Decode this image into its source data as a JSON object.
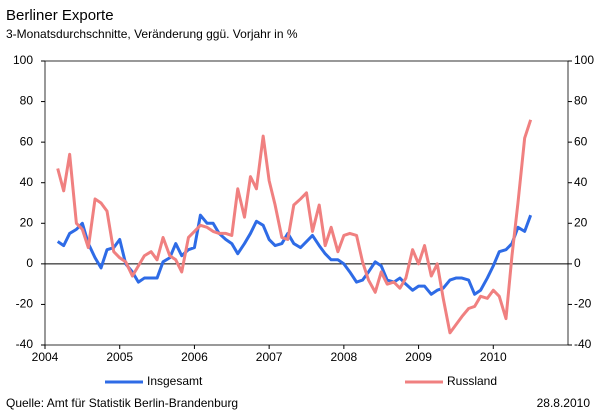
{
  "chart_data": {
    "type": "line",
    "title": "Berliner Exporte",
    "subtitle": "3-Monatsdurchschnitte, Veränderung ggü. Vorjahr in %",
    "source": "Quelle: Amt für Statistik Berlin-Brandenburg",
    "date": "28.8.2010",
    "x": [
      2004.17,
      2004.25,
      2004.33,
      2004.42,
      2004.5,
      2004.58,
      2004.67,
      2004.75,
      2004.83,
      2004.92,
      2005.0,
      2005.08,
      2005.17,
      2005.25,
      2005.33,
      2005.42,
      2005.5,
      2005.58,
      2005.67,
      2005.75,
      2005.83,
      2005.92,
      2006.0,
      2006.08,
      2006.17,
      2006.25,
      2006.33,
      2006.42,
      2006.5,
      2006.58,
      2006.67,
      2006.75,
      2006.83,
      2006.92,
      2007.0,
      2007.08,
      2007.17,
      2007.25,
      2007.33,
      2007.42,
      2007.5,
      2007.58,
      2007.67,
      2007.75,
      2007.83,
      2007.92,
      2008.0,
      2008.08,
      2008.17,
      2008.25,
      2008.33,
      2008.42,
      2008.5,
      2008.58,
      2008.67,
      2008.75,
      2008.83,
      2008.92,
      2009.0,
      2009.08,
      2009.17,
      2009.25,
      2009.33,
      2009.42,
      2009.5,
      2009.58,
      2009.67,
      2009.75,
      2009.83,
      2009.92,
      2010.0,
      2010.08,
      2010.17,
      2010.25,
      2010.33,
      2010.42,
      2010.5
    ],
    "series": [
      {
        "name": "Insgesamt",
        "color": "#2e6be6",
        "values": [
          11,
          9,
          15,
          17,
          20,
          10,
          3,
          -2,
          7,
          8,
          12,
          0,
          -4,
          -9,
          -7,
          -7,
          -7,
          1,
          3,
          10,
          4,
          7,
          8,
          24,
          20,
          20,
          15,
          12,
          10,
          5,
          10,
          15,
          21,
          19,
          12,
          9,
          10,
          15,
          10,
          8,
          11,
          14,
          9,
          5,
          2,
          2,
          0,
          -4,
          -9,
          -8,
          -4,
          1,
          -1,
          -8,
          -9,
          -7,
          -10,
          -13,
          -11,
          -11,
          -15,
          -13,
          -12,
          -8,
          -7,
          -7,
          -8,
          -15,
          -13,
          -7,
          -1,
          6,
          7,
          10,
          18,
          16,
          24
        ]
      },
      {
        "name": "Russland",
        "color": "#f08080",
        "values": [
          47,
          36,
          54,
          20,
          17,
          8,
          32,
          30,
          26,
          6,
          3,
          1,
          -6,
          -1,
          4,
          6,
          2,
          13,
          4,
          2,
          -4,
          13,
          16,
          19,
          18,
          16,
          15,
          15,
          14,
          37,
          23,
          43,
          37,
          63,
          41,
          29,
          13,
          12,
          29,
          32,
          35,
          16,
          29,
          9,
          18,
          6,
          14,
          15,
          14,
          1,
          -8,
          -14,
          -4,
          -10,
          -9,
          -12,
          -7,
          7,
          0,
          9,
          -6,
          0,
          -17,
          -34,
          -30,
          -26,
          -22,
          -21,
          -16,
          -17,
          -13,
          -16,
          -27,
          4,
          30,
          62,
          71
        ]
      }
    ],
    "xlim": [
      2004,
      2011
    ],
    "xticks": [
      2004,
      2005,
      2006,
      2007,
      2008,
      2009,
      2010
    ],
    "ylim": [
      -40,
      100
    ],
    "yticks": [
      -40,
      -20,
      0,
      20,
      40,
      60,
      80,
      100
    ],
    "y2lim": [
      -40,
      100
    ],
    "y2ticks": [
      -40,
      -20,
      0,
      20,
      40,
      60,
      80,
      100
    ],
    "legend": "bottom"
  }
}
